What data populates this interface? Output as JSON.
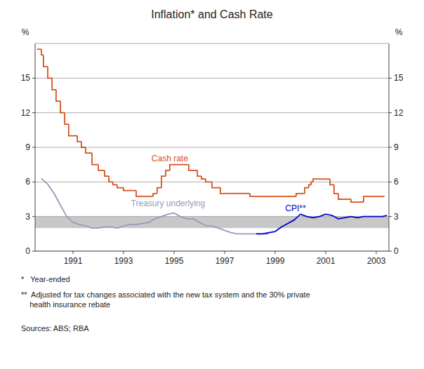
{
  "chart_data": {
    "type": "line",
    "title": "Inflation* and Cash Rate",
    "y_label": "%",
    "y2_label": "%",
    "xlim": [
      1989.5,
      2003.5
    ],
    "xticks": [
      1991,
      1993,
      1995,
      1997,
      1999,
      2001,
      2003
    ],
    "ylim": [
      0,
      18
    ],
    "yticks": [
      0,
      3,
      6,
      9,
      12,
      15
    ],
    "y2lim": [
      0,
      18
    ],
    "y2ticks": [
      0,
      3,
      6,
      9,
      12,
      15
    ],
    "grid": true,
    "target_band": [
      2,
      3
    ],
    "target_band_color": "#c8c8c8",
    "grid_color": "#888888",
    "footnotes": [
      "*   Year-ended",
      "**  Adjusted for tax changes associated with the new tax system and the 30% private\n    health insurance rebate",
      "Sources: ABS; RBA"
    ],
    "series": [
      {
        "name": "Cash rate",
        "type": "step",
        "color": "#d4521e",
        "x": [
          1989.58,
          1989.67,
          1989.75,
          1989.83,
          1990.0,
          1990.17,
          1990.33,
          1990.5,
          1990.67,
          1990.83,
          1991.0,
          1991.17,
          1991.33,
          1991.5,
          1991.75,
          1992.0,
          1992.25,
          1992.42,
          1992.58,
          1992.75,
          1993.0,
          1993.5,
          1994.0,
          1994.17,
          1994.33,
          1994.5,
          1994.67,
          1994.83,
          1995.0,
          1995.17,
          1995.42,
          1995.58,
          1995.75,
          1995.92,
          1996.08,
          1996.25,
          1996.5,
          1996.67,
          1996.83,
          1997.0,
          1997.17,
          1997.33,
          1997.5,
          1998.0,
          1998.5,
          1999.0,
          1999.17,
          1999.33,
          1999.5,
          1999.67,
          1999.83,
          2000.0,
          2000.17,
          2000.33,
          2000.42,
          2000.5,
          2000.67,
          2000.83,
          2001.0,
          2001.17,
          2001.33,
          2001.5,
          2001.67,
          2001.83,
          2002.0,
          2002.17,
          2002.5,
          2002.75,
          2003.0,
          2003.17,
          2003.33
        ],
        "values": [
          17.5,
          17.5,
          17.0,
          16.0,
          15.0,
          14.0,
          13.0,
          12.0,
          11.0,
          10.0,
          10.0,
          9.5,
          9.0,
          8.5,
          7.5,
          7.0,
          6.5,
          6.0,
          5.75,
          5.5,
          5.25,
          4.75,
          4.75,
          5.0,
          5.5,
          6.5,
          7.0,
          7.5,
          7.5,
          7.5,
          7.5,
          7.0,
          7.0,
          6.5,
          6.25,
          6.0,
          5.5,
          5.5,
          5.0,
          5.0,
          5.0,
          5.0,
          5.0,
          4.75,
          4.75,
          4.75,
          4.75,
          4.75,
          4.75,
          4.75,
          5.0,
          5.0,
          5.5,
          5.75,
          6.0,
          6.25,
          6.25,
          6.25,
          6.25,
          5.75,
          5.0,
          4.5,
          4.5,
          4.5,
          4.25,
          4.25,
          4.75,
          4.75,
          4.75,
          4.75,
          4.75
        ]
      },
      {
        "name": "Treasury underlying",
        "type": "line",
        "color": "#9999bb",
        "x": [
          1989.75,
          1990.0,
          1990.25,
          1990.5,
          1990.75,
          1991.0,
          1991.25,
          1991.5,
          1991.75,
          1992.0,
          1992.25,
          1992.5,
          1992.75,
          1993.0,
          1993.25,
          1993.5,
          1993.75,
          1994.0,
          1994.25,
          1994.5,
          1994.75,
          1995.0,
          1995.25,
          1995.5,
          1995.75,
          1996.0,
          1996.25,
          1996.5,
          1996.75,
          1997.0,
          1997.25,
          1997.5,
          1997.75,
          1998.0,
          1998.25,
          1998.5,
          1998.75
        ],
        "values": [
          6.3,
          5.8,
          5.0,
          4.0,
          3.0,
          2.5,
          2.3,
          2.2,
          2.0,
          2.0,
          2.1,
          2.1,
          2.0,
          2.2,
          2.3,
          2.3,
          2.4,
          2.5,
          2.8,
          3.0,
          3.2,
          3.3,
          3.0,
          2.8,
          2.8,
          2.5,
          2.2,
          2.2,
          2.0,
          1.8,
          1.6,
          1.5,
          1.5,
          1.5,
          1.5,
          1.5,
          1.5
        ]
      },
      {
        "name": "CPI**",
        "type": "line",
        "color": "#0000cc",
        "x": [
          1998.25,
          1998.5,
          1998.75,
          1999.0,
          1999.25,
          1999.5,
          1999.75,
          2000.0,
          2000.25,
          2000.5,
          2000.75,
          2001.0,
          2001.25,
          2001.5,
          2001.75,
          2002.0,
          2002.25,
          2002.5,
          2002.75,
          2003.0,
          2003.25,
          2003.42
        ],
        "values": [
          1.5,
          1.5,
          1.6,
          1.7,
          2.1,
          2.4,
          2.7,
          3.2,
          3.0,
          2.9,
          3.0,
          3.2,
          3.1,
          2.8,
          2.9,
          3.0,
          2.9,
          3.0,
          3.0,
          3.0,
          3.0,
          3.1
        ]
      }
    ]
  }
}
